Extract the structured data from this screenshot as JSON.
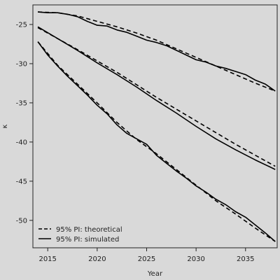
{
  "chart_data": {
    "type": "line",
    "xlabel": "Year",
    "ylabel": "κ",
    "xlim": [
      2013.5,
      2038.2
    ],
    "ylim": [
      -53.5,
      -22.5
    ],
    "x_ticks": [
      2015,
      2020,
      2025,
      2030,
      2035
    ],
    "y_ticks": [
      -25,
      -30,
      -35,
      -40,
      -45,
      -50
    ],
    "grid": false,
    "legend_position": "bottom-left",
    "legend": [
      {
        "label": "95% PI: theoretical",
        "line_style": "dashed"
      },
      {
        "label": "95% PI: simulated",
        "line_style": "solid"
      }
    ],
    "series": [
      {
        "style": "dashed",
        "group": "upper",
        "x": [
          2014,
          2016,
          2018,
          2020,
          2022,
          2024,
          2026,
          2028,
          2030,
          2032,
          2034,
          2036,
          2038
        ],
        "y": [
          -23.4,
          -23.5,
          -23.9,
          -24.6,
          -25.3,
          -26.1,
          -27.0,
          -28.1,
          -29.2,
          -30.3,
          -31.4,
          -32.5,
          -33.5
        ]
      },
      {
        "style": "solid",
        "group": "upper",
        "x": [
          2014,
          2015,
          2016,
          2017,
          2018,
          2019,
          2020,
          2021,
          2022,
          2023,
          2024,
          2025,
          2026,
          2027,
          2028,
          2029,
          2030,
          2031,
          2032,
          2033,
          2034,
          2035,
          2036,
          2037,
          2038
        ],
        "y": [
          -23.4,
          -23.5,
          -23.5,
          -23.7,
          -24.0,
          -24.6,
          -25.1,
          -25.2,
          -25.7,
          -26.0,
          -26.5,
          -27.0,
          -27.3,
          -27.7,
          -28.3,
          -28.9,
          -29.5,
          -29.8,
          -30.3,
          -30.6,
          -31.0,
          -31.4,
          -32.1,
          -32.6,
          -33.5
        ]
      },
      {
        "style": "dashed",
        "group": "center",
        "x": [
          2014,
          2018,
          2022,
          2026,
          2030,
          2034,
          2038
        ],
        "y": [
          -25.4,
          -28.2,
          -31.1,
          -34.3,
          -37.3,
          -40.3,
          -43.1
        ]
      },
      {
        "style": "solid",
        "group": "center",
        "x": [
          2014,
          2016,
          2018,
          2020,
          2022,
          2024,
          2026,
          2028,
          2030,
          2032,
          2034,
          2036,
          2038
        ],
        "y": [
          -25.3,
          -26.8,
          -28.3,
          -29.9,
          -31.4,
          -33.0,
          -34.7,
          -36.3,
          -38.0,
          -39.6,
          -41.0,
          -42.3,
          -43.5
        ]
      },
      {
        "style": "dashed",
        "group": "lower",
        "x": [
          2014,
          2016,
          2018,
          2020,
          2022,
          2024,
          2026,
          2028,
          2030,
          2032,
          2034,
          2036,
          2038
        ],
        "y": [
          -27.2,
          -30.2,
          -32.6,
          -35.0,
          -37.5,
          -39.7,
          -41.5,
          -43.5,
          -45.5,
          -47.5,
          -49.2,
          -51.0,
          -52.7
        ]
      },
      {
        "style": "solid",
        "group": "lower",
        "x": [
          2014,
          2015,
          2016,
          2017,
          2018,
          2019,
          2020,
          2021,
          2022,
          2023,
          2024,
          2025,
          2026,
          2027,
          2028,
          2029,
          2030,
          2031,
          2032,
          2033,
          2034,
          2035,
          2036,
          2037,
          2038
        ],
        "y": [
          -27.2,
          -28.9,
          -30.3,
          -31.6,
          -32.8,
          -34.0,
          -35.3,
          -36.4,
          -37.8,
          -38.9,
          -39.6,
          -40.3,
          -41.7,
          -42.7,
          -43.7,
          -44.6,
          -45.6,
          -46.4,
          -47.3,
          -48.0,
          -48.9,
          -49.6,
          -50.6,
          -51.6,
          -52.7
        ]
      }
    ]
  }
}
